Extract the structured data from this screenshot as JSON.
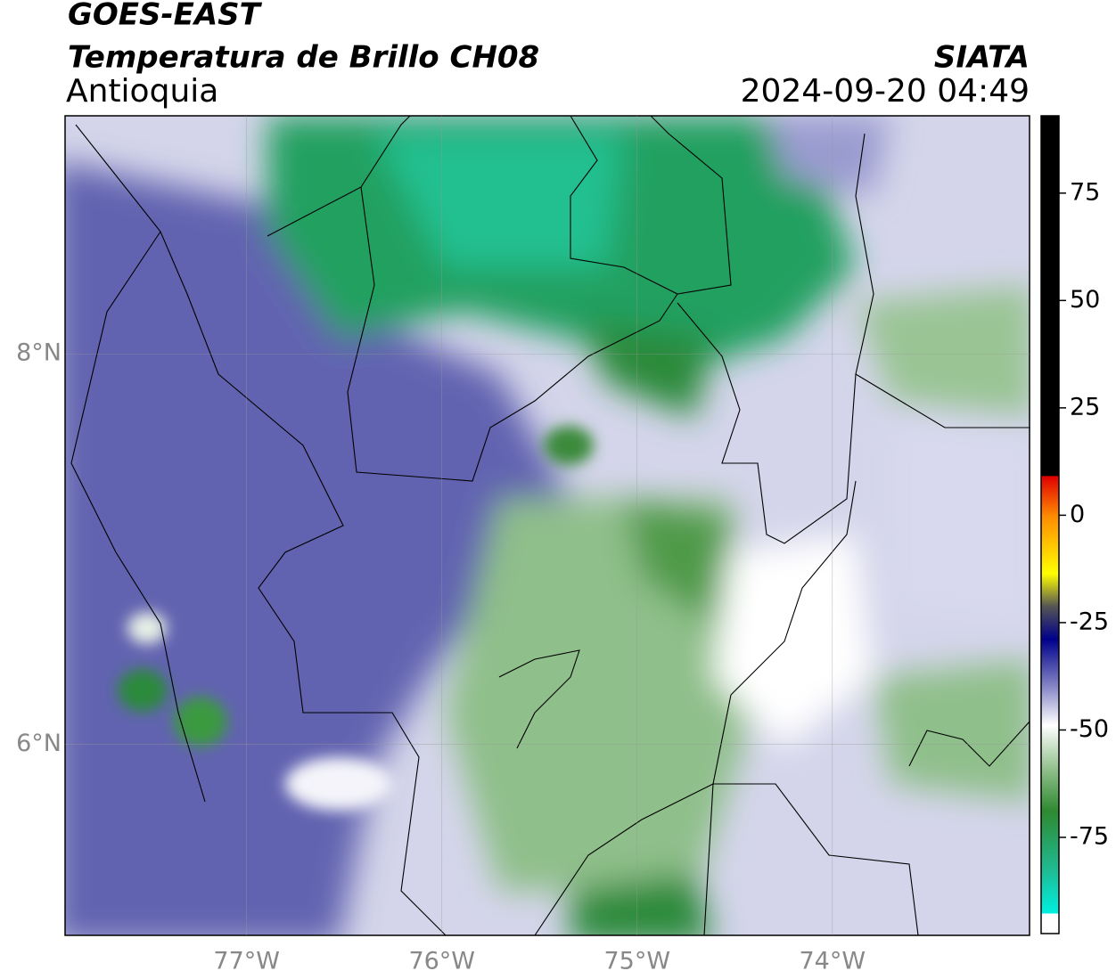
{
  "header": {
    "title": "GOES-EAST",
    "subtitle": "Temperatura de Brillo CH08",
    "region": "Antioquia",
    "source": "SIATA",
    "timestamp": "2024-09-20 04:49"
  },
  "map": {
    "lon_range": [
      -77.93,
      -72.99
    ],
    "lat_range": [
      5.02,
      9.22
    ],
    "lon_ticks": [
      {
        "value": -77,
        "label": "77°W"
      },
      {
        "value": -76,
        "label": "76°W"
      },
      {
        "value": -75,
        "label": "75°W"
      },
      {
        "value": -74,
        "label": "74°W"
      }
    ],
    "lat_ticks": [
      {
        "value": 8,
        "label": "8°N"
      },
      {
        "value": 6,
        "label": "6°N"
      }
    ],
    "grid": true
  },
  "colorbar": {
    "range": [
      -97.4,
      93
    ],
    "ticks": [
      75,
      50,
      25,
      0,
      -25,
      -50,
      -75
    ]
  }
}
